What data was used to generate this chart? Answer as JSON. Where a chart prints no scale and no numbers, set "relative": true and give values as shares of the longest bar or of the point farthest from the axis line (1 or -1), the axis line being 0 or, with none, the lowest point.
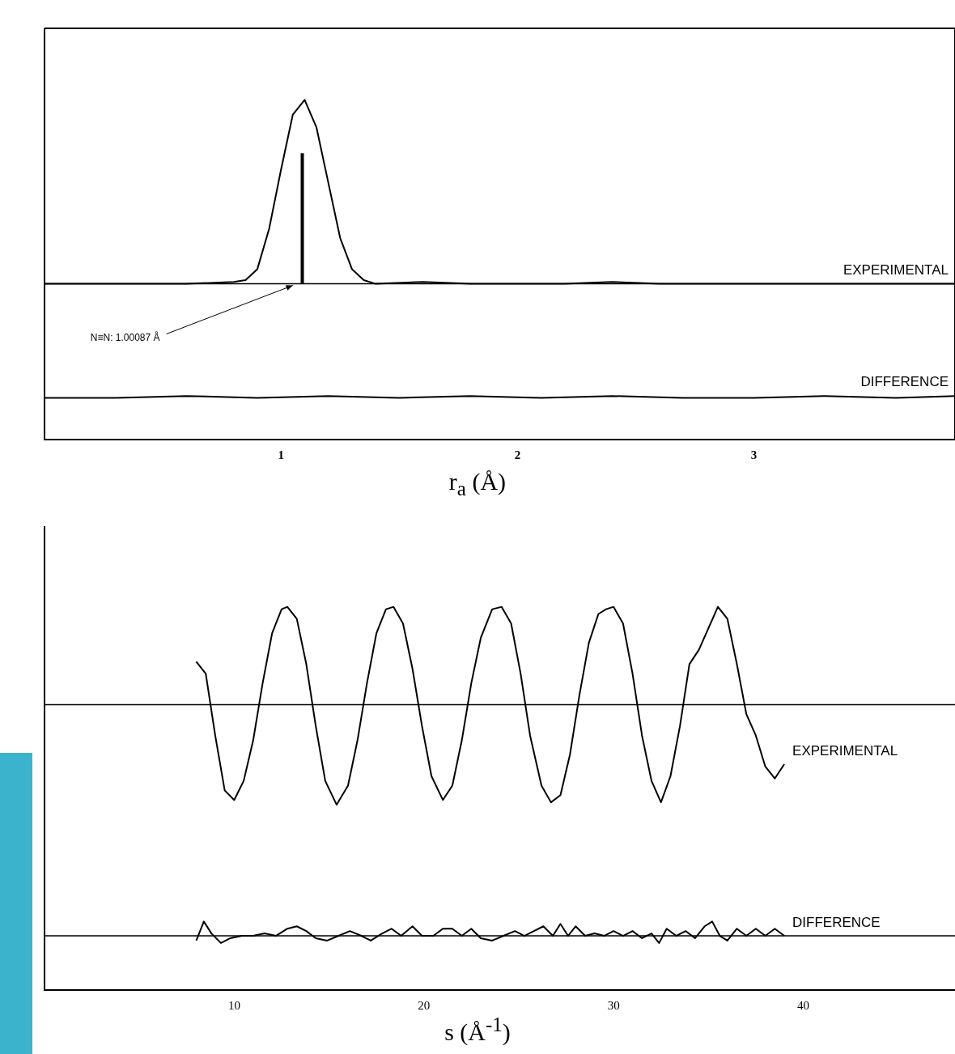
{
  "chart_data": [
    {
      "type": "line",
      "relative": true,
      "xlabel": "r$_{a}$ (Å)",
      "xlim": [
        0,
        3.85
      ],
      "xticks": [
        1,
        2,
        3
      ],
      "tick_labels": "x",
      "grid": false,
      "marker": "none",
      "series": [
        {
          "name": "EXPERIMENTAL",
          "color": "#000000",
          "x": [
            0,
            0.2,
            0.4,
            0.6,
            0.8,
            0.85,
            0.9,
            0.95,
            1.0,
            1.05,
            1.1,
            1.15,
            1.2,
            1.25,
            1.3,
            1.35,
            1.4,
            1.6,
            1.8,
            2.0,
            2.2,
            2.4,
            2.6,
            2.8,
            3.0,
            3.2,
            3.4,
            3.6,
            3.85
          ],
          "values": [
            0,
            0,
            0,
            0,
            0.01,
            0.02,
            0.08,
            0.3,
            0.62,
            0.92,
            1.0,
            0.85,
            0.55,
            0.25,
            0.08,
            0.02,
            0,
            0.01,
            0,
            0,
            0,
            0.01,
            0,
            0,
            0,
            0,
            0,
            0,
            0
          ]
        },
        {
          "color": "#000000",
          "type": "line",
          "x": [
            1.09,
            1.09
          ],
          "values": [
            0,
            0.71
          ]
        },
        {
          "name": "DIFFERENCE",
          "color": "#000000",
          "x": [
            0,
            0.3,
            0.6,
            0.9,
            1.2,
            1.5,
            1.8,
            2.1,
            2.4,
            2.7,
            3.0,
            3.3,
            3.6,
            3.85
          ],
          "values": [
            -0.62,
            -0.62,
            -0.61,
            -0.62,
            -0.61,
            -0.62,
            -0.61,
            -0.62,
            -0.61,
            -0.62,
            -0.62,
            -0.61,
            -0.62,
            -0.61
          ]
        }
      ],
      "ref_lines": [
        {
          "axis": "y",
          "value": 0,
          "color": "#000000"
        }
      ],
      "annotations": [
        {
          "text": "N≡N: 1.00087 Å",
          "x": 1.05,
          "y": 0
        }
      ]
    },
    {
      "type": "line",
      "relative": true,
      "xlabel": "s (Å$^{-1}$)",
      "xlim": [
        0,
        48
      ],
      "xticks": [
        10,
        20,
        30,
        40
      ],
      "tick_labels": "x",
      "grid": false,
      "marker": "none",
      "series": [
        {
          "name": "EXPERIMENTAL",
          "color": "#000000",
          "x": [
            8.0,
            8.5,
            9.0,
            9.5,
            10.0,
            10.5,
            11.0,
            11.5,
            12.0,
            12.5,
            12.8,
            13.3,
            13.8,
            14.3,
            14.8,
            15.4,
            16.0,
            16.5,
            17.0,
            17.5,
            18.0,
            18.4,
            18.9,
            19.4,
            19.9,
            20.4,
            21.0,
            21.5,
            22.0,
            22.5,
            23.0,
            23.6,
            24.1,
            24.6,
            25.1,
            25.6,
            26.2,
            26.7,
            27.2,
            27.7,
            28.2,
            28.7,
            29.2,
            29.6,
            30.0,
            30.5,
            31.0,
            31.5,
            32.0,
            32.5,
            33.0,
            33.5,
            34.0,
            34.5,
            35.0,
            35.5,
            36.0,
            36.5,
            37.0,
            37.5,
            38.0,
            38.5,
            39.0
          ],
          "values": [
            0.18,
            0.13,
            -0.13,
            -0.36,
            -0.4,
            -0.32,
            -0.15,
            0.09,
            0.3,
            0.4,
            0.41,
            0.36,
            0.17,
            -0.09,
            -0.32,
            -0.42,
            -0.34,
            -0.15,
            0.09,
            0.3,
            0.4,
            0.41,
            0.34,
            0.15,
            -0.09,
            -0.3,
            -0.4,
            -0.34,
            -0.15,
            0.09,
            0.28,
            0.4,
            0.41,
            0.34,
            0.13,
            -0.13,
            -0.34,
            -0.41,
            -0.38,
            -0.21,
            0.04,
            0.26,
            0.38,
            0.4,
            0.41,
            0.34,
            0.13,
            -0.13,
            -0.32,
            -0.41,
            -0.3,
            -0.09,
            0.17,
            0.23,
            0.32,
            0.41,
            0.36,
            0.17,
            -0.04,
            -0.13,
            -0.26,
            -0.31,
            -0.25
          ]
        },
        {
          "name": "DIFFERENCE",
          "color": "#000000",
          "x": [
            8.0,
            8.4,
            8.8,
            9.3,
            9.8,
            10.4,
            11.0,
            11.6,
            12.2,
            12.8,
            13.3,
            13.8,
            14.3,
            14.9,
            15.5,
            16.1,
            16.7,
            17.2,
            17.8,
            18.3,
            18.8,
            19.4,
            19.9,
            20.5,
            21.0,
            21.5,
            22.0,
            22.5,
            23.0,
            23.6,
            24.2,
            24.8,
            25.3,
            25.8,
            26.3,
            26.8,
            27.2,
            27.6,
            28.0,
            28.5,
            29.0,
            29.5,
            30.0,
            30.5,
            31.0,
            31.5,
            32.0,
            32.4,
            32.8,
            33.3,
            33.8,
            34.3,
            34.8,
            35.2,
            35.6,
            36.0,
            36.5,
            37.0,
            37.5,
            38.0,
            38.5,
            39.0
          ],
          "values": [
            -0.99,
            -0.91,
            -0.96,
            -1.0,
            -0.98,
            -0.97,
            -0.97,
            -0.96,
            -0.97,
            -0.94,
            -0.93,
            -0.95,
            -0.98,
            -0.99,
            -0.97,
            -0.95,
            -0.97,
            -0.99,
            -0.96,
            -0.94,
            -0.97,
            -0.93,
            -0.97,
            -0.97,
            -0.94,
            -0.94,
            -0.97,
            -0.94,
            -0.98,
            -0.99,
            -0.97,
            -0.95,
            -0.97,
            -0.95,
            -0.93,
            -0.97,
            -0.92,
            -0.97,
            -0.93,
            -0.97,
            -0.96,
            -0.97,
            -0.95,
            -0.97,
            -0.95,
            -0.98,
            -0.96,
            -1.0,
            -0.94,
            -0.97,
            -0.95,
            -0.98,
            -0.93,
            -0.91,
            -0.97,
            -0.99,
            -0.94,
            -0.97,
            -0.94,
            -0.97,
            -0.94,
            -0.97
          ]
        }
      ],
      "ref_lines": [
        {
          "axis": "y",
          "value": 0,
          "color": "#000000"
        },
        {
          "axis": "y",
          "value": -0.97,
          "color": "#000000"
        }
      ]
    }
  ]
}
